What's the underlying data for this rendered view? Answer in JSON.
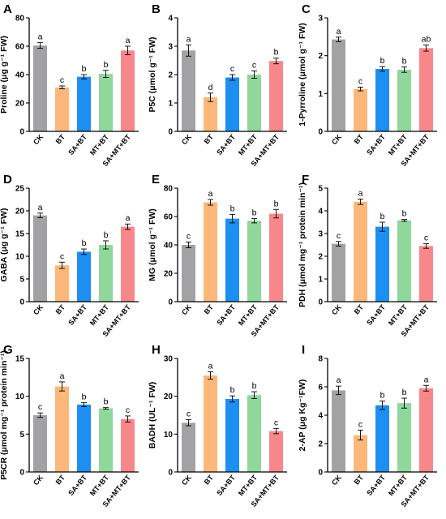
{
  "figure": {
    "colors": [
      "#a2a2a4",
      "#fbb87a",
      "#1d8ff0",
      "#90d79b",
      "#f8878c"
    ],
    "categories": [
      "CK",
      "BT",
      "SA+BT",
      "MT+BT",
      "SA+MT+BT"
    ]
  },
  "chart_data": [
    {
      "panel": "A",
      "type": "bar",
      "ylabel": "Proline (μg g⁻¹ FW)",
      "ylim": [
        0,
        80
      ],
      "yticks": [
        0,
        20,
        40,
        60,
        80
      ],
      "values": [
        60.5,
        31,
        38.5,
        40.5,
        57
      ],
      "errors": [
        2,
        1,
        1.5,
        2.5,
        3
      ],
      "letters": [
        "a",
        "c",
        "b",
        "b",
        "a"
      ]
    },
    {
      "panel": "B",
      "type": "bar",
      "ylabel": "P5C (μmol g⁻¹ FW)",
      "ylim": [
        0,
        4
      ],
      "yticks": [
        0,
        1,
        2,
        3,
        4
      ],
      "values": [
        2.85,
        1.2,
        1.9,
        2.0,
        2.48
      ],
      "errors": [
        0.2,
        0.15,
        0.1,
        0.13,
        0.1
      ],
      "letters": [
        "a",
        "d",
        "c",
        "c",
        "b"
      ]
    },
    {
      "panel": "C",
      "type": "bar",
      "ylabel": "1-Pyrroline (μmol g⁻¹ FW)",
      "ylim": [
        0,
        3
      ],
      "yticks": [
        0,
        1,
        2,
        3
      ],
      "values": [
        2.43,
        1.12,
        1.65,
        1.63,
        2.2
      ],
      "errors": [
        0.06,
        0.05,
        0.06,
        0.07,
        0.08
      ],
      "letters": [
        "a",
        "c",
        "b",
        "b",
        "ab"
      ]
    },
    {
      "panel": "D",
      "type": "bar",
      "ylabel": "GABA (μg g⁻¹ FW)",
      "ylim": [
        0,
        25
      ],
      "yticks": [
        0,
        5,
        10,
        15,
        20,
        25
      ],
      "values": [
        19,
        8,
        11,
        12.5,
        16.5
      ],
      "errors": [
        0.5,
        0.7,
        0.6,
        0.9,
        0.6
      ],
      "letters": [
        "a",
        "c",
        "b",
        "b",
        "a"
      ]
    },
    {
      "panel": "E",
      "type": "bar",
      "ylabel": "MG (μmol g⁻¹ FW)",
      "ylim": [
        0,
        80
      ],
      "yticks": [
        0,
        20,
        40,
        60,
        80
      ],
      "values": [
        40,
        70,
        58.5,
        57,
        62
      ],
      "errors": [
        2,
        2,
        3,
        1.5,
        3
      ],
      "letters": [
        "c",
        "a",
        "b",
        "b",
        "b"
      ]
    },
    {
      "panel": "F",
      "type": "bar",
      "ylabel": "PDH (μmol mg⁻¹ protein min⁻¹)",
      "ylim": [
        0,
        5
      ],
      "yticks": [
        0,
        1,
        2,
        3,
        4,
        5
      ],
      "values": [
        2.55,
        4.4,
        3.3,
        3.58,
        2.45
      ],
      "errors": [
        0.1,
        0.12,
        0.2,
        0.04,
        0.1
      ],
      "letters": [
        "c",
        "a",
        "b",
        "b",
        "c"
      ]
    },
    {
      "panel": "G",
      "type": "bar",
      "ylabel": "P5CR (μmol mg⁻¹ protein min⁻¹)",
      "ylim": [
        0,
        15
      ],
      "yticks": [
        0,
        5,
        10,
        15
      ],
      "values": [
        7.5,
        11.3,
        8.9,
        8.4,
        7.0
      ],
      "errors": [
        0.3,
        0.6,
        0.25,
        0.1,
        0.4
      ],
      "letters": [
        "c",
        "a",
        "b",
        "b",
        "c"
      ]
    },
    {
      "panel": "H",
      "type": "bar",
      "ylabel": "BADH (UL⁻¹ FW)",
      "ylim": [
        0,
        30
      ],
      "yticks": [
        0,
        10,
        20,
        30
      ],
      "values": [
        13,
        25.5,
        19.3,
        20.3,
        10.8
      ],
      "errors": [
        0.8,
        1,
        0.8,
        0.9,
        0.7
      ],
      "letters": [
        "c",
        "a",
        "b",
        "b",
        "c"
      ]
    },
    {
      "panel": "I",
      "type": "bar",
      "ylabel": "2-AP (μg Kg⁻¹FW)",
      "ylim": [
        0,
        8
      ],
      "yticks": [
        0,
        2,
        4,
        6,
        8
      ],
      "values": [
        5.75,
        2.6,
        4.7,
        4.85,
        5.9
      ],
      "errors": [
        0.3,
        0.35,
        0.3,
        0.35,
        0.2
      ],
      "letters": [
        "a",
        "c",
        "b",
        "b",
        "a"
      ]
    }
  ]
}
